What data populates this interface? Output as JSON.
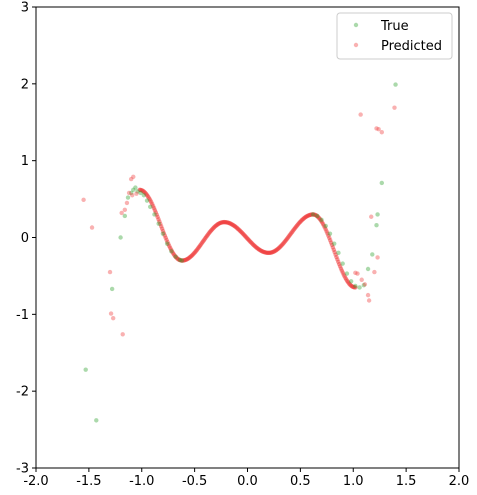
{
  "chart_data": {
    "type": "scatter",
    "title": "",
    "xlabel": "",
    "ylabel": "",
    "xlim": [
      -2.0,
      2.0
    ],
    "ylim": [
      -3,
      3
    ],
    "xticks": [
      "-2.0",
      "-1.5",
      "-1.0",
      "-0.5",
      "0.0",
      "0.5",
      "1.0",
      "1.5",
      "2.0"
    ],
    "xtick_values": [
      -2.0,
      -1.5,
      -1.0,
      -0.5,
      0.0,
      0.5,
      1.0,
      1.5,
      2.0
    ],
    "yticks": [
      "-3",
      "-2",
      "-1",
      "0",
      "1",
      "2",
      "3"
    ],
    "ytick_values": [
      -3,
      -2,
      -1,
      0,
      1,
      2,
      3
    ],
    "grid": false,
    "legend_position": "top-right",
    "series": [
      {
        "name": "True",
        "color": "#2ca02c",
        "alpha": 0.3,
        "points": [
          [
            -1.53,
            -1.72
          ],
          [
            -1.43,
            -2.38
          ],
          [
            -1.28,
            -0.67
          ],
          [
            -1.2,
            0.0
          ],
          [
            -1.16,
            0.28
          ],
          [
            -1.13,
            0.52
          ],
          [
            -1.1,
            0.58
          ],
          [
            -1.08,
            0.62
          ],
          [
            -1.06,
            0.65
          ],
          [
            -1.04,
            0.6
          ],
          [
            -1.01,
            0.58
          ],
          [
            -0.98,
            0.55
          ],
          [
            -0.95,
            0.48
          ],
          [
            -0.92,
            0.4
          ],
          [
            -0.88,
            0.3
          ],
          [
            -0.84,
            0.18
          ],
          [
            -0.8,
            0.05
          ],
          [
            -0.76,
            -0.08
          ],
          [
            -0.72,
            -0.18
          ],
          [
            -0.68,
            -0.25
          ],
          [
            -0.64,
            -0.29
          ],
          [
            -0.62,
            -0.3
          ],
          [
            0.62,
            0.3
          ],
          [
            0.66,
            0.28
          ],
          [
            0.7,
            0.23
          ],
          [
            0.74,
            0.15
          ],
          [
            0.78,
            0.05
          ],
          [
            0.82,
            -0.08
          ],
          [
            0.86,
            -0.2
          ],
          [
            0.9,
            -0.34
          ],
          [
            0.94,
            -0.47
          ],
          [
            0.98,
            -0.57
          ],
          [
            1.02,
            -0.63
          ],
          [
            1.06,
            -0.65
          ],
          [
            1.1,
            -0.62
          ],
          [
            1.14,
            -0.41
          ],
          [
            1.18,
            -0.22
          ],
          [
            1.22,
            0.16
          ],
          [
            1.23,
            0.3
          ],
          [
            1.27,
            0.71
          ],
          [
            1.4,
            1.99
          ]
        ]
      },
      {
        "name": "Predicted",
        "color": "#f03c3c",
        "alpha": 0.3,
        "points": [
          [
            -1.55,
            0.49
          ],
          [
            -1.47,
            0.13
          ],
          [
            -1.3,
            -0.45
          ],
          [
            -1.29,
            -0.99
          ],
          [
            -1.27,
            -1.05
          ],
          [
            -1.18,
            -1.26
          ],
          [
            -1.19,
            0.32
          ],
          [
            -1.16,
            0.36
          ],
          [
            -1.14,
            0.45
          ],
          [
            -1.1,
            0.76
          ],
          [
            -1.08,
            0.79
          ],
          [
            -1.05,
            0.57
          ],
          [
            -1.12,
            0.58
          ],
          [
            -1.09,
            0.55
          ],
          [
            1.02,
            -0.46
          ],
          [
            1.04,
            -0.47
          ],
          [
            1.08,
            -0.55
          ],
          [
            1.11,
            -0.61
          ],
          [
            1.14,
            -0.75
          ],
          [
            1.15,
            -0.82
          ],
          [
            1.17,
            0.27
          ],
          [
            1.2,
            -0.45
          ],
          [
            1.23,
            -0.26
          ],
          [
            1.22,
            1.42
          ],
          [
            1.24,
            1.41
          ],
          [
            1.27,
            1.37
          ],
          [
            1.07,
            1.6
          ],
          [
            1.39,
            1.69
          ]
        ]
      }
    ],
    "curve": {
      "name": "Predicted",
      "color": "#f03c3c",
      "x_range": [
        -1.02,
        1.02
      ],
      "samples": 240
    }
  }
}
